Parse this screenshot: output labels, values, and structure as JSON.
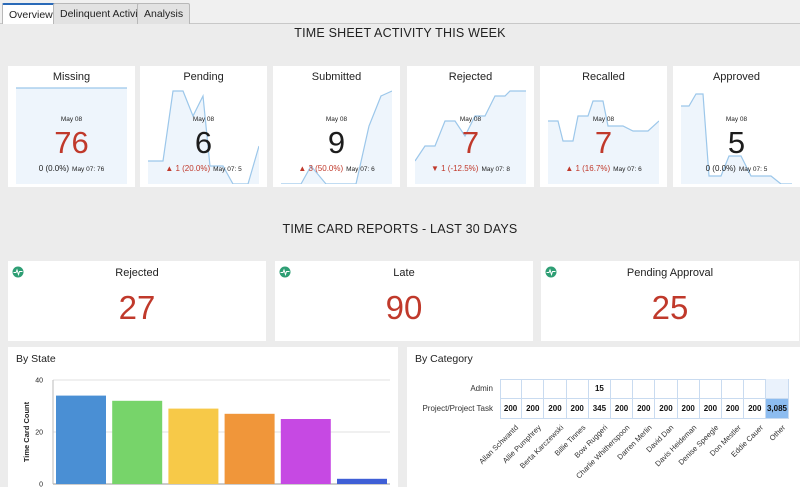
{
  "tabs": [
    {
      "label": "Overview",
      "active": true
    },
    {
      "label": "Delinquent Activity",
      "active": false
    },
    {
      "label": "Analysis",
      "active": false
    }
  ],
  "weekly": {
    "title": "TIME SHEET ACTIVITY THIS WEEK",
    "cards": [
      {
        "label": "Missing",
        "date": "May 08",
        "value": "76",
        "value_color": "red",
        "change": "0 (0.0%)",
        "change_dir": "flat",
        "previous": "May 07: 76"
      },
      {
        "label": "Pending",
        "date": "May 08",
        "value": "6",
        "value_color": "dark",
        "change": "▲ 1 (20.0%)",
        "change_dir": "up",
        "previous": "May 07: 5"
      },
      {
        "label": "Submitted",
        "date": "May 08",
        "value": "9",
        "value_color": "dark",
        "change": "▲ 3 (50.0%)",
        "change_dir": "up",
        "previous": "May 07: 6"
      },
      {
        "label": "Rejected",
        "date": "May 08",
        "value": "7",
        "value_color": "red",
        "change": "▼ 1 (-12.5%)",
        "change_dir": "down",
        "previous": "May 07: 8"
      },
      {
        "label": "Recalled",
        "date": "May 08",
        "value": "7",
        "value_color": "red",
        "change": "▲ 1 (16.7%)",
        "change_dir": "up",
        "previous": "May 07: 6"
      },
      {
        "label": "Approved",
        "date": "May 08",
        "value": "5",
        "value_color": "dark",
        "change": "0 (0.0%)",
        "change_dir": "flat",
        "previous": "May 07: 5"
      }
    ]
  },
  "reports": {
    "title": "TIME CARD REPORTS - LAST 30 DAYS",
    "cards": [
      {
        "label": "Rejected",
        "value": "27",
        "icon": "activity-icon"
      },
      {
        "label": "Late",
        "value": "90",
        "icon": "activity-icon"
      },
      {
        "label": "Pending Approval",
        "value": "25",
        "icon": "activity-icon"
      }
    ]
  },
  "by_state": {
    "title": "By State",
    "ylabel": "Time Card Count",
    "ticks": [
      "40",
      "20",
      "0"
    ]
  },
  "by_category": {
    "title": "By Category",
    "rows": [
      "Admin",
      "Project/Project Task"
    ],
    "columns": [
      "Allan Schwantd",
      "Allie Pumphrey",
      "Berta Karczewski",
      "Billie Tinnes",
      "Bow Ruggeri",
      "Charlie Whitherspoon",
      "Darren Merlin",
      "David Dan",
      "Davis Heideman",
      "Denise Speegle",
      "Don Mestler",
      "Eddie Cauer",
      "Other"
    ],
    "admin_values": [
      "",
      "",
      "",
      "",
      "15",
      "",
      "",
      "",
      "",
      "",
      "",
      "",
      ""
    ],
    "project_values": [
      "200",
      "200",
      "200",
      "200",
      "345",
      "200",
      "200",
      "200",
      "200",
      "200",
      "200",
      "200",
      "3,085"
    ]
  },
  "colors": {
    "accent": "#2a6ab8",
    "red": "#c0392b",
    "spark_line": "#9cc7ea",
    "spark_fill": "#eef5fc",
    "bars": [
      "#4a8fd4",
      "#77d46a",
      "#f7c948",
      "#f0963a",
      "#c649e3",
      "#3f5fd6"
    ]
  },
  "chart_data": [
    {
      "type": "bar",
      "title": "By State",
      "xlabel": "",
      "ylabel": "Time Card Count",
      "ylim": [
        0,
        40
      ],
      "categories": [
        "",
        "",
        "",
        "",
        "",
        ""
      ],
      "values": [
        34,
        32,
        29,
        27,
        25,
        2
      ]
    }
  ]
}
